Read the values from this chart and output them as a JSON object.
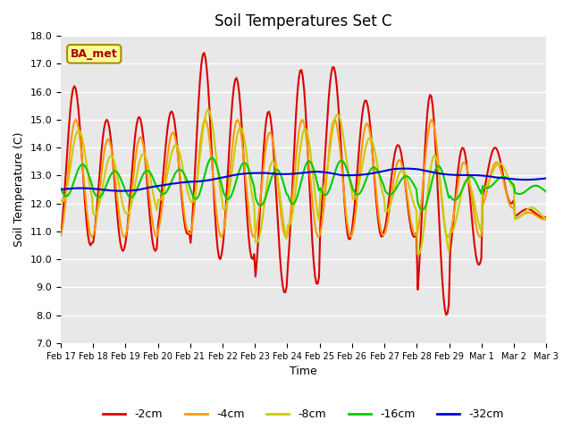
{
  "title": "Soil Temperatures Set C",
  "xlabel": "Time",
  "ylabel": "Soil Temperature (C)",
  "ylim": [
    7.0,
    18.0
  ],
  "yticks": [
    7.0,
    8.0,
    9.0,
    10.0,
    11.0,
    12.0,
    13.0,
    14.0,
    15.0,
    16.0,
    17.0,
    18.0
  ],
  "xtick_labels": [
    "Feb 17",
    "Feb 18",
    "Feb 19",
    "Feb 20",
    "Feb 21",
    "Feb 22",
    "Feb 23",
    "Feb 24",
    "Feb 25",
    "Feb 26",
    "Feb 27",
    "Feb 28",
    "Feb 29",
    "Mar 1",
    "Mar 2",
    "Mar 3"
  ],
  "legend_labels": [
    "-2cm",
    "-4cm",
    "-8cm",
    "-16cm",
    "-32cm"
  ],
  "legend_colors": [
    "#dd0000",
    "#ff9900",
    "#cccc00",
    "#00cc00",
    "#0000dd"
  ],
  "line_colors": [
    "#dd0000",
    "#ff9900",
    "#cccc00",
    "#00cc00",
    "#0000dd"
  ],
  "watermark_text": "BA_met",
  "plot_bg_color": "#e8e8e8"
}
